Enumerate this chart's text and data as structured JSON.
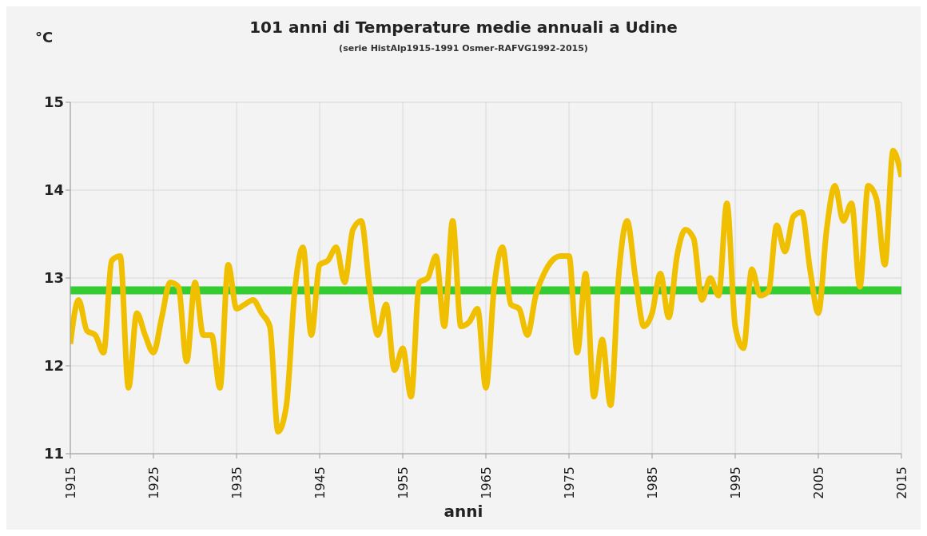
{
  "chart_data": {
    "type": "line",
    "title": "101 anni di Temperature medie annuali a Udine",
    "subtitle": "(serie HistAlp1915-1991 Osmer-RAFVG1992-2015)",
    "xlabel": "anni",
    "ylabel": "°C",
    "x": [
      1915,
      1916,
      1917,
      1918,
      1919,
      1920,
      1921,
      1922,
      1923,
      1924,
      1925,
      1926,
      1927,
      1928,
      1929,
      1930,
      1931,
      1932,
      1933,
      1934,
      1935,
      1936,
      1937,
      1938,
      1939,
      1940,
      1941,
      1942,
      1943,
      1944,
      1945,
      1946,
      1947,
      1948,
      1949,
      1950,
      1951,
      1952,
      1953,
      1954,
      1955,
      1956,
      1957,
      1958,
      1959,
      1960,
      1961,
      1962,
      1963,
      1964,
      1965,
      1966,
      1967,
      1968,
      1969,
      1970,
      1971,
      1972,
      1973,
      1974,
      1975,
      1976,
      1977,
      1978,
      1979,
      1980,
      1981,
      1982,
      1983,
      1984,
      1985,
      1986,
      1987,
      1988,
      1989,
      1990,
      1991,
      1992,
      1993,
      1994,
      1995,
      1996,
      1997,
      1998,
      1999,
      2000,
      2001,
      2002,
      2003,
      2004,
      2005,
      2006,
      2007,
      2008,
      2009,
      2010,
      2011,
      2012,
      2013,
      2014,
      2015
    ],
    "series": [
      {
        "color": "#f0c000",
        "values": [
          12.25,
          12.75,
          12.4,
          12.35,
          12.15,
          13.2,
          13.25,
          11.75,
          12.6,
          12.35,
          12.15,
          12.55,
          12.95,
          12.9,
          12.05,
          12.95,
          12.35,
          12.35,
          11.75,
          13.15,
          12.65,
          12.7,
          12.75,
          12.6,
          12.45,
          11.25,
          11.55,
          12.85,
          13.35,
          12.35,
          13.15,
          13.2,
          13.35,
          12.95,
          13.55,
          13.65,
          12.9,
          12.35,
          12.7,
          11.95,
          12.2,
          11.65,
          12.95,
          13.0,
          13.25,
          12.45,
          13.65,
          12.45,
          12.5,
          12.65,
          11.75,
          12.9,
          13.35,
          12.7,
          12.65,
          12.35,
          12.8,
          13.05,
          13.2,
          13.25,
          13.25,
          12.15,
          13.05,
          11.65,
          12.3,
          11.55,
          13.05,
          13.65,
          13.0,
          12.45,
          12.6,
          13.05,
          12.55,
          13.25,
          13.55,
          13.45,
          12.75,
          13.0,
          12.8,
          13.85,
          12.45,
          12.2,
          13.1,
          12.8,
          12.85,
          13.6,
          13.3,
          13.7,
          13.75,
          13.1,
          12.6,
          13.55,
          14.05,
          13.65,
          13.85,
          12.9,
          14.05,
          13.9,
          13.15,
          14.45,
          14.15
        ]
      }
    ],
    "xlim": [
      1915,
      2015
    ],
    "xticks": [
      1915,
      1925,
      1935,
      1945,
      1955,
      1965,
      1975,
      1985,
      1995,
      2005,
      2015
    ],
    "ylim": [
      11,
      15
    ],
    "yticks": [
      11,
      12,
      13,
      14,
      15
    ],
    "ref_lines": [
      {
        "axis": "y",
        "value": 12.86,
        "color": "#33cc33"
      }
    ],
    "grid": true,
    "marker": "none",
    "line_style": "solid"
  }
}
